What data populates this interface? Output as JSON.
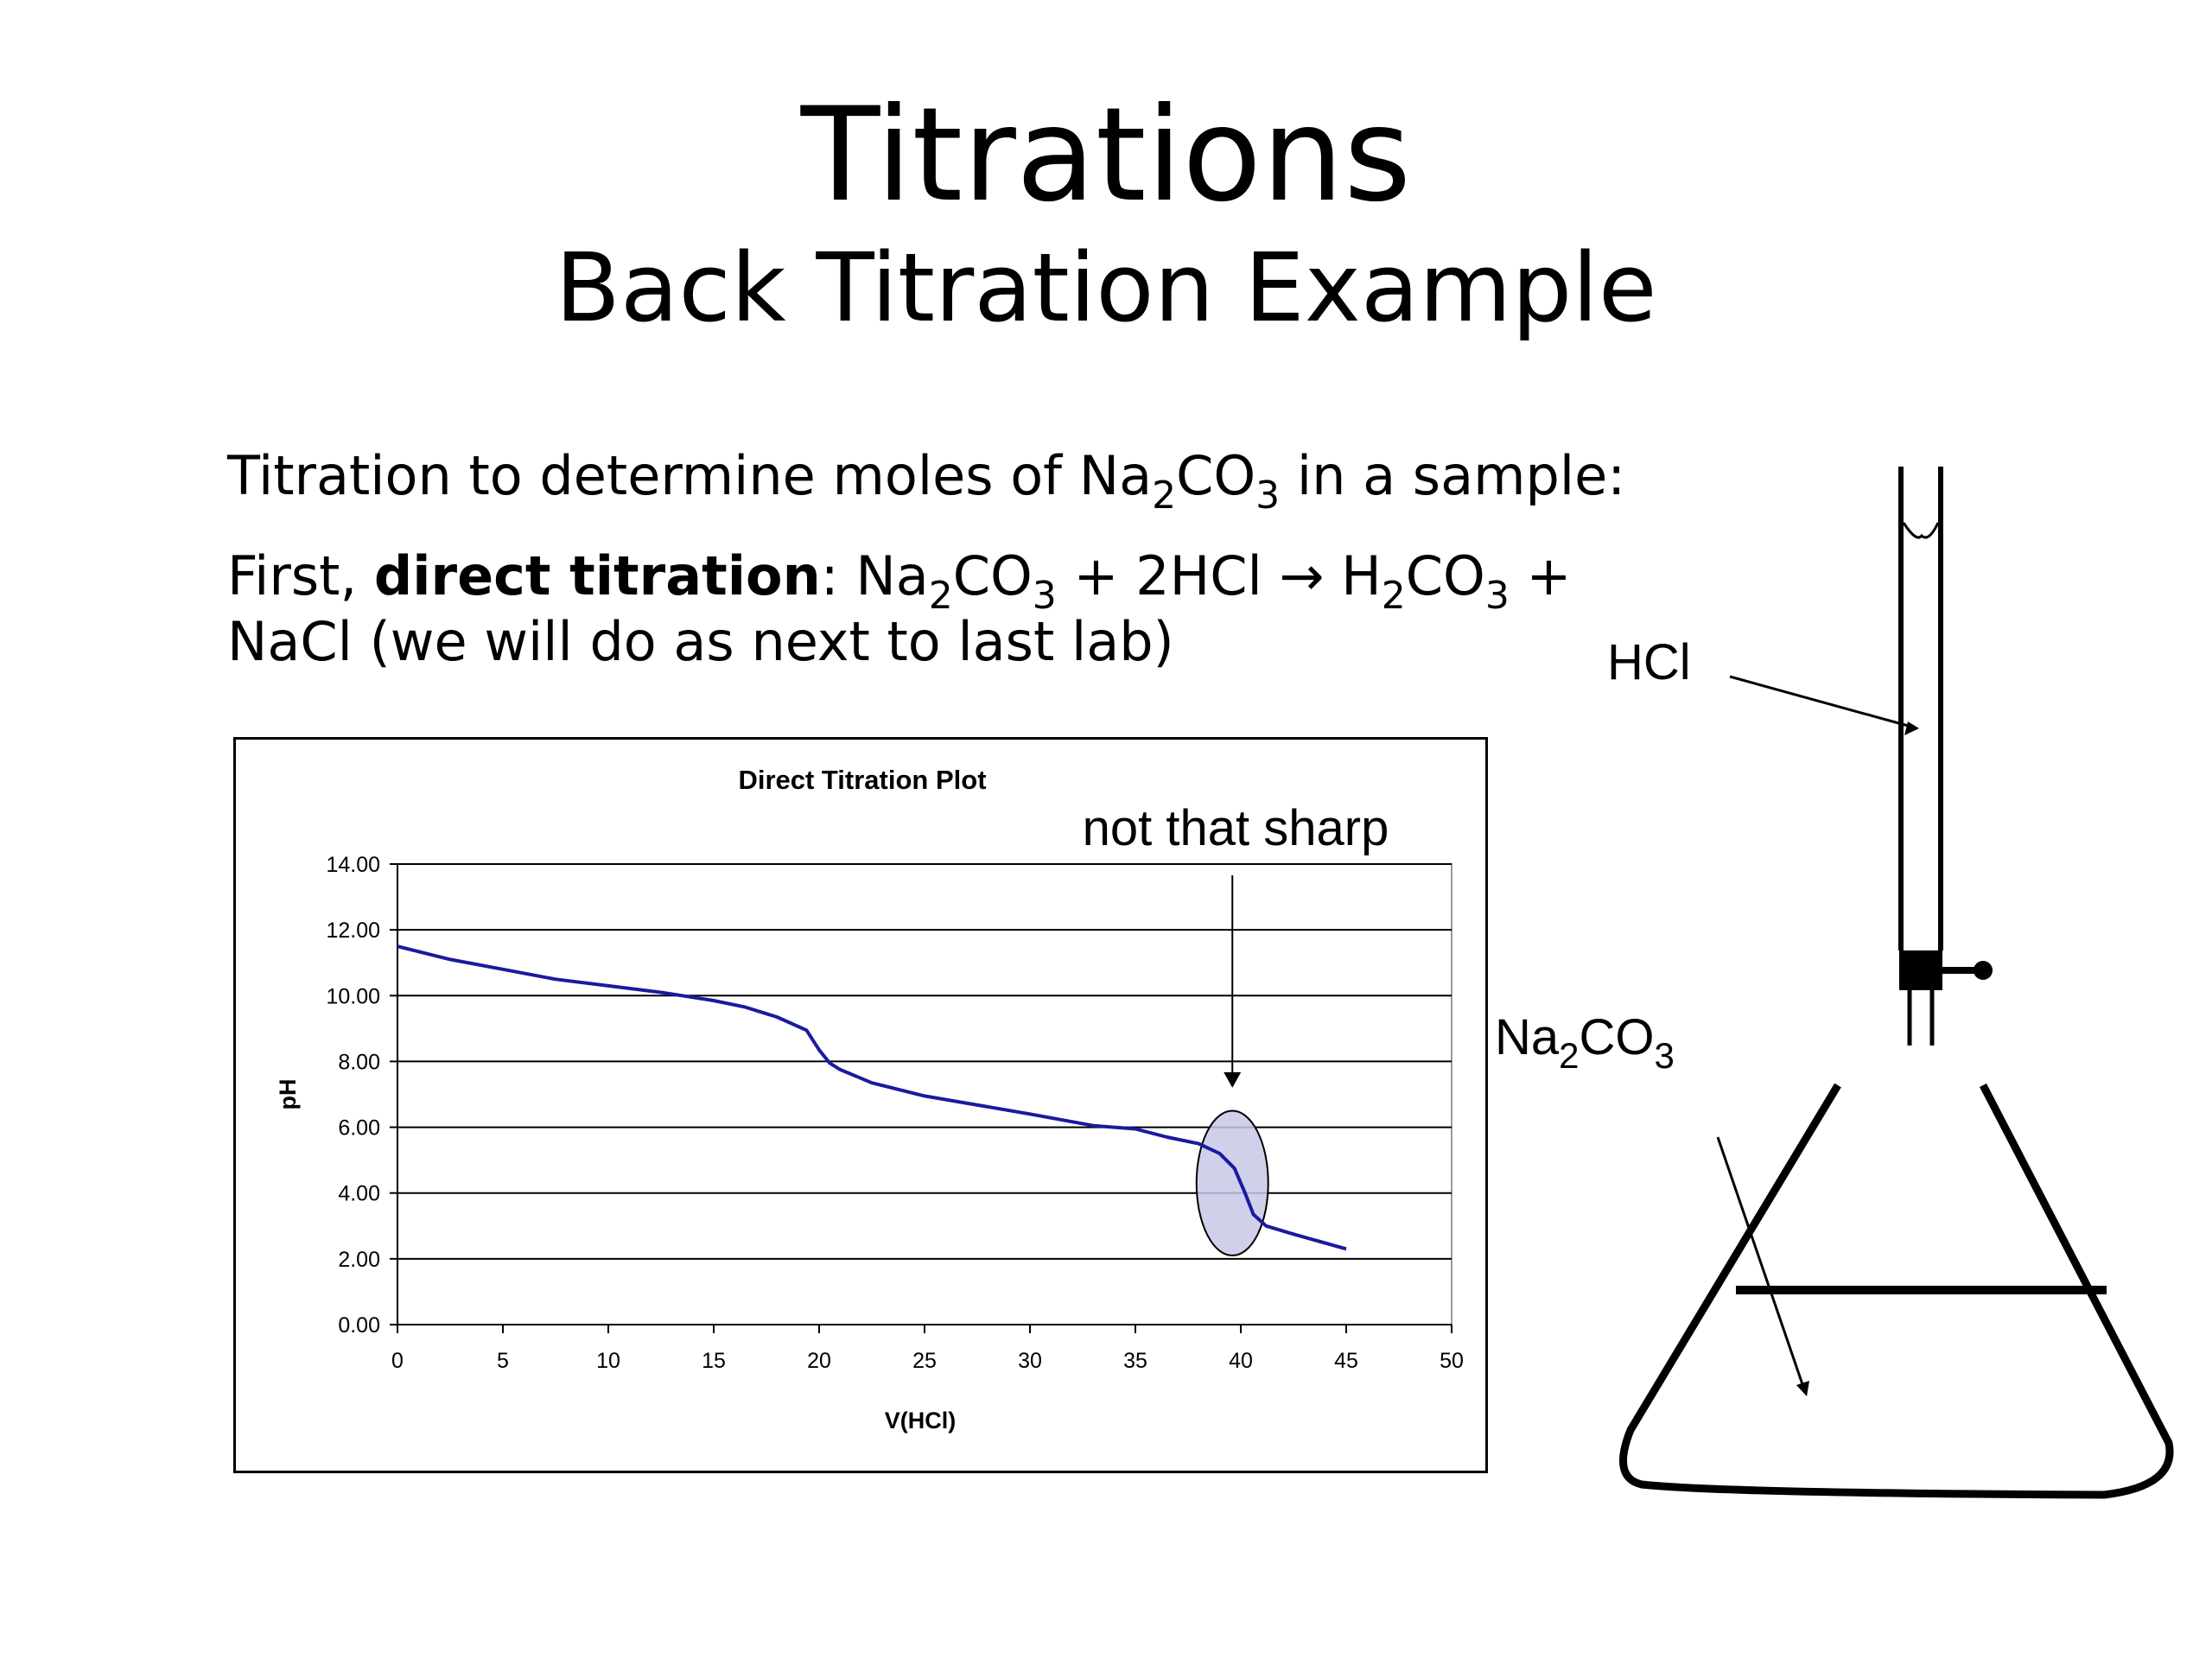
{
  "slide": {
    "title": "Titrations",
    "subtitle": "Back Titration Example",
    "line1": {
      "text": "Titration to determine moles of Na",
      "sub1": "2",
      "mid": "CO",
      "sub2": "3",
      "end": " in a sample:"
    },
    "line2": {
      "prefix": "First, ",
      "bold": "direct titration",
      "colon": ":  ",
      "eq_na": "Na",
      "eq_sub1": "2",
      "eq_co": "CO",
      "eq_sub2": "3",
      "eq_mid": " + 2HCl → H",
      "eq_sub3": "2",
      "eq_co2": "CO",
      "eq_sub4": "3",
      "eq_end": " +"
    },
    "line3": "NaCl (we will do as next to last lab)"
  },
  "apparatus": {
    "burette_label": "HCl",
    "flask_label": "Na",
    "flask_label_sub": "2",
    "flask_label_mid": "CO",
    "flask_label_sub2": "3"
  },
  "colors": {
    "curve": "#1a1aa0",
    "highlight_fill": "#c8c8e8",
    "stopcock": "#7a7a7a"
  },
  "chart_data": {
    "type": "line",
    "title": "Direct Titration Plot",
    "xlabel": "V(HCl)",
    "ylabel": "pH",
    "xlim": [
      0,
      50
    ],
    "ylim": [
      0,
      14
    ],
    "x_ticks": [
      "0",
      "5",
      "10",
      "15",
      "20",
      "25",
      "30",
      "35",
      "40",
      "45",
      "50"
    ],
    "y_ticks": [
      "0.00",
      "2.00",
      "4.00",
      "6.00",
      "8.00",
      "10.00",
      "12.00",
      "14.00"
    ],
    "grid": "horizontal",
    "series": [
      {
        "x": [
          0,
          2.5,
          5,
          7.5,
          10,
          12.5,
          14,
          15,
          16.5,
          18,
          19.4,
          20.0,
          20.5,
          21,
          22.5,
          25,
          30,
          33,
          35,
          36.5,
          38,
          39.0,
          39.7,
          40.2,
          40.6,
          41.2,
          42.5,
          45
        ],
        "y": [
          11.5,
          11.1,
          10.8,
          10.5,
          10.3,
          10.1,
          9.95,
          9.85,
          9.65,
          9.35,
          8.95,
          8.35,
          7.95,
          7.75,
          7.35,
          6.95,
          6.4,
          6.05,
          5.95,
          5.7,
          5.5,
          5.2,
          4.75,
          4.0,
          3.35,
          3.0,
          2.75,
          2.3
        ]
      }
    ],
    "annotations": [
      {
        "text": "not that sharp",
        "arrow_to": [
          39.6,
          7.2
        ]
      }
    ],
    "highlight": {
      "shape": "ellipse",
      "cx": 39.6,
      "cy": 4.3,
      "rx": 1.7,
      "ry": 2.2
    }
  }
}
